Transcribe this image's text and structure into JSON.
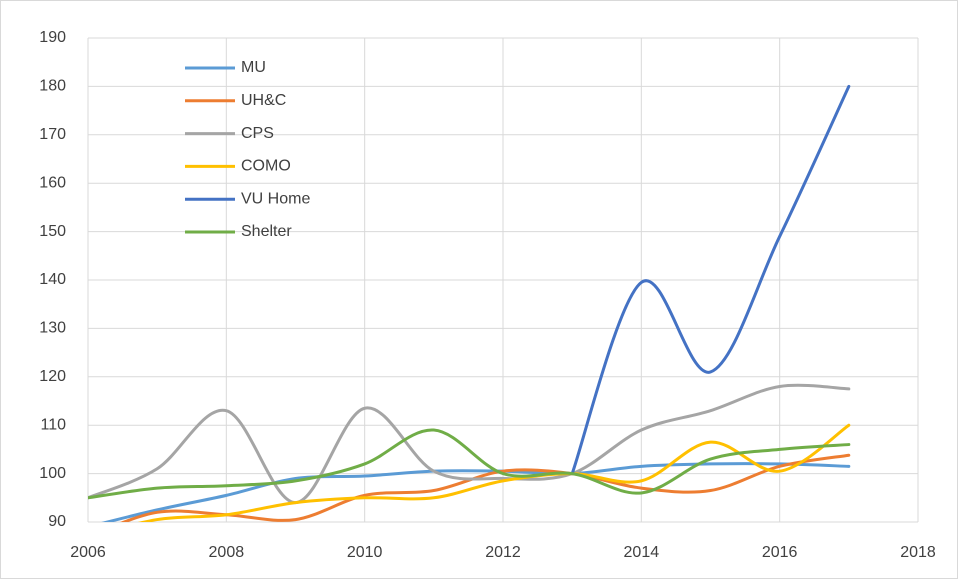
{
  "chart_data": {
    "type": "line",
    "x": [
      2006,
      2007,
      2008,
      2009,
      2010,
      2011,
      2012,
      2013,
      2014,
      2015,
      2016,
      2017
    ],
    "series": [
      {
        "name": "MU",
        "color": "#5b9bd5",
        "values": [
          89,
          92.5,
          95.5,
          99,
          99.5,
          100.5,
          100.5,
          100,
          101.5,
          102,
          102,
          101.5
        ]
      },
      {
        "name": "UH&C",
        "color": "#ed7d31",
        "values": [
          87,
          92,
          91.5,
          90.5,
          95.5,
          96.5,
          100.5,
          100,
          97,
          96.5,
          101.5,
          103.8
        ]
      },
      {
        "name": "CPS",
        "color": "#a5a5a5",
        "values": [
          95,
          101,
          113,
          94,
          113.5,
          100.5,
          99,
          100,
          109,
          113,
          118,
          117.5
        ]
      },
      {
        "name": "COMO",
        "color": "#ffc000",
        "values": [
          87,
          90.5,
          91.5,
          94,
          95,
          95,
          98.5,
          100,
          98.5,
          106.5,
          100.5,
          110
        ]
      },
      {
        "name": "VU Home",
        "color": "#4472c4",
        "values": [
          null,
          null,
          null,
          null,
          null,
          null,
          null,
          100,
          139.5,
          121,
          149,
          180
        ]
      },
      {
        "name": "Shelter",
        "color": "#70ad47",
        "values": [
          95,
          97,
          97.5,
          98.5,
          102,
          109,
          100,
          100,
          96,
          103,
          105,
          106
        ]
      }
    ],
    "xlim": [
      2006,
      2018
    ],
    "xticks": [
      2006,
      2008,
      2010,
      2012,
      2014,
      2016,
      2018
    ],
    "ylim": [
      90,
      190
    ],
    "yticks": [
      90,
      100,
      110,
      120,
      130,
      140,
      150,
      160,
      170,
      180,
      190
    ],
    "grid": true,
    "legend": "upper-left"
  }
}
